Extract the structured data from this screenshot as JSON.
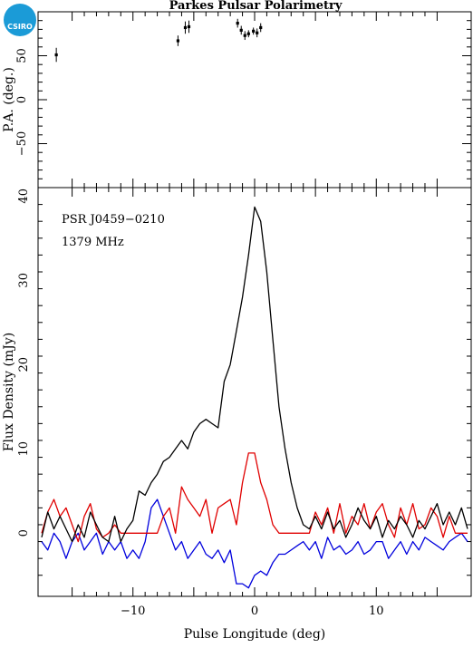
{
  "chart_data": [
    {
      "type": "scatter",
      "panel": "position-angle",
      "title": "Parkes Pulsar Polarimetry",
      "xlabel": "",
      "ylabel": "P.A. (deg.)",
      "xlim": [
        -17.8,
        17.8
      ],
      "ylim": [
        -100,
        100
      ],
      "yticks": [
        -50,
        0,
        50
      ],
      "points": [
        {
          "x": -16.3,
          "y": 51,
          "err": 8
        },
        {
          "x": -6.3,
          "y": 67,
          "err": 6
        },
        {
          "x": -5.7,
          "y": 82,
          "err": 7
        },
        {
          "x": -5.4,
          "y": 83,
          "err": 7
        },
        {
          "x": -1.4,
          "y": 87,
          "err": 5
        },
        {
          "x": -1.1,
          "y": 79,
          "err": 5
        },
        {
          "x": -0.8,
          "y": 73,
          "err": 5
        },
        {
          "x": -0.5,
          "y": 75,
          "err": 4
        },
        {
          "x": -0.1,
          "y": 78,
          "err": 4
        },
        {
          "x": 0.2,
          "y": 76,
          "err": 5
        },
        {
          "x": 0.5,
          "y": 82,
          "err": 5
        }
      ]
    },
    {
      "type": "line",
      "panel": "flux",
      "xlabel": "Pulse Longitude (deg)",
      "ylabel": "Flux Density (mJy)",
      "xlim": [
        -17.8,
        17.8
      ],
      "ylim": [
        -7.5,
        41
      ],
      "xticks": [
        -10,
        0,
        10
      ],
      "yticks": [
        0,
        10,
        20,
        30,
        40
      ],
      "annotations": [
        "PSR J0459−0210",
        "1379 MHz"
      ],
      "x": [
        -17.5,
        -17.0,
        -16.5,
        -16.0,
        -15.5,
        -15.0,
        -14.5,
        -14.0,
        -13.5,
        -13.0,
        -12.5,
        -12.0,
        -11.5,
        -11.0,
        -10.5,
        -10.0,
        -9.5,
        -9.0,
        -8.5,
        -8.0,
        -7.5,
        -7.0,
        -6.5,
        -6.0,
        -5.5,
        -5.0,
        -4.5,
        -4.0,
        -3.5,
        -3.0,
        -2.5,
        -2.0,
        -1.5,
        -1.0,
        -0.5,
        0.0,
        0.5,
        1.0,
        1.5,
        2.0,
        2.5,
        3.0,
        3.5,
        4.0,
        4.5,
        5.0,
        5.5,
        6.0,
        6.5,
        7.0,
        7.5,
        8.0,
        8.5,
        9.0,
        9.5,
        10.0,
        10.5,
        11.0,
        11.5,
        12.0,
        12.5,
        13.0,
        13.5,
        14.0,
        14.5,
        15.0,
        15.5,
        16.0,
        16.5,
        17.0,
        17.5
      ],
      "series": [
        {
          "color": "#000000",
          "values": [
            -0.5,
            2.5,
            0.5,
            2,
            0.5,
            -1,
            1,
            -0.5,
            2.5,
            1,
            -0.5,
            -1,
            2,
            -1,
            0.5,
            1.5,
            5,
            4.5,
            6,
            7,
            8.5,
            9,
            10,
            11,
            10,
            12,
            13,
            13.5,
            13,
            12.5,
            18,
            20,
            24,
            28,
            33,
            38.7,
            37,
            31,
            23,
            15,
            10,
            6,
            3,
            1,
            0.5,
            2,
            0.5,
            2.5,
            0.5,
            1.5,
            -0.5,
            1,
            3,
            1.5,
            0.5,
            2,
            -0.5,
            1.5,
            0.5,
            2,
            1,
            -0.5,
            1.5,
            0.5,
            2,
            3.5,
            1,
            2.5,
            1,
            3,
            0.5
          ]
        },
        {
          "color": "#e00000",
          "values": [
            0,
            2.5,
            4,
            2,
            3,
            1,
            -1,
            2,
            3.5,
            0.5,
            -0.5,
            0,
            1,
            0,
            0,
            0,
            0,
            0,
            0,
            0,
            2,
            3,
            0,
            5.5,
            4,
            3,
            2,
            4,
            0,
            3,
            3.5,
            4,
            1,
            6,
            9.5,
            9.5,
            6,
            4,
            1,
            0,
            0,
            0,
            0,
            0,
            0,
            2.5,
            1,
            3,
            0,
            3.5,
            0,
            2,
            1,
            3.5,
            0.5,
            2.5,
            3.5,
            1,
            -0.5,
            3,
            1,
            3.5,
            0.5,
            1,
            3,
            2,
            -0.5,
            2,
            0,
            0,
            0
          ]
        },
        {
          "color": "#0000dd",
          "values": [
            -1,
            -2,
            0,
            -1,
            -3,
            -1,
            0,
            -2,
            -1,
            0,
            -2.5,
            -1,
            -2,
            -1,
            -3,
            -2,
            -3,
            -1,
            3,
            4,
            2,
            0,
            -2,
            -1,
            -3,
            -2,
            -1,
            -2.5,
            -3,
            -2,
            -3.5,
            -2,
            -6,
            -6,
            -6.5,
            -5,
            -4.5,
            -5,
            -3.5,
            -2.5,
            -2.5,
            -2,
            -1.5,
            -1,
            -2,
            -1,
            -3,
            -0.5,
            -2,
            -1.5,
            -2.5,
            -2,
            -1,
            -2.5,
            -2,
            -1,
            -1,
            -3,
            -2,
            -1,
            -2.5,
            -1,
            -2,
            -0.5,
            -1,
            -1.5,
            -2,
            -1,
            -0.5,
            0,
            -1
          ]
        }
      ]
    }
  ],
  "logo": {
    "text": "CSIRO"
  }
}
